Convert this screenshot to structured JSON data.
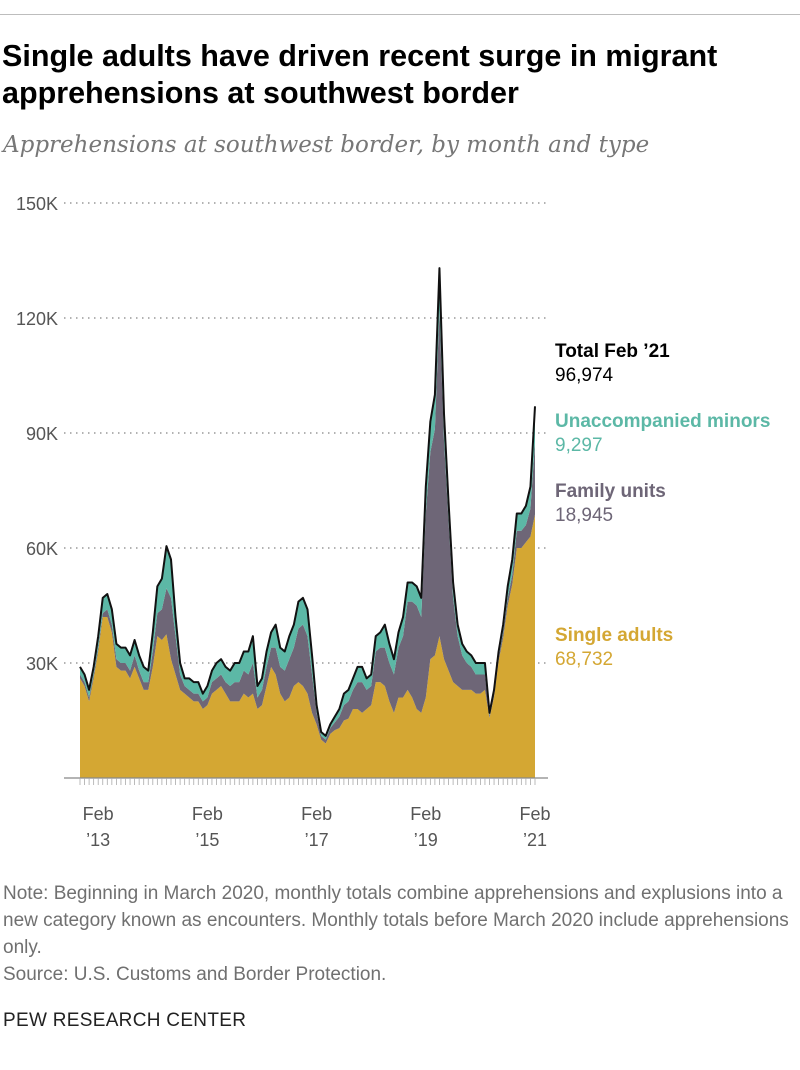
{
  "title": "Single adults have driven recent surge in migrant apprehensions at southwest border",
  "subtitle": "Apprehensions at southwest border, by month and type",
  "colors": {
    "single_adults": "#D4A733",
    "family_units": "#6E6677",
    "unaccompanied_minors": "#5CB8A6",
    "total": "#111111"
  },
  "labels": {
    "total": {
      "name": "Total Feb ’21",
      "value": "96,974"
    },
    "uac": {
      "name": "Unaccompanied minors",
      "value": "9,297"
    },
    "family": {
      "name": "Family units",
      "value": "18,945"
    },
    "single": {
      "name": "Single adults",
      "value": "68,732"
    }
  },
  "note": "Note: Beginning in March 2020, monthly totals combine apprehensions and explusions into a new category known as encounters. Monthly totals before March 2020 include apprehensions only.",
  "source": "Source: U.S. Customs and Border Protection.",
  "brand": "PEW RESEARCH CENTER",
  "chart_data": {
    "type": "area",
    "stacked": true,
    "title": "Apprehensions at southwest border, by month and type",
    "x_start": "Oct 2012",
    "x_end": "Feb 2021",
    "x_ticks": [
      {
        "index": 4,
        "line1": "Feb",
        "line2": "’13"
      },
      {
        "index": 28,
        "line1": "Feb",
        "line2": "’15"
      },
      {
        "index": 52,
        "line1": "Feb",
        "line2": "’17"
      },
      {
        "index": 76,
        "line1": "Feb",
        "line2": "’19"
      },
      {
        "index": 100,
        "line1": "Feb",
        "line2": "’21"
      }
    ],
    "y_ticks": [
      {
        "value": 30,
        "label": "30K"
      },
      {
        "value": 60,
        "label": "60K"
      },
      {
        "value": 90,
        "label": "90K"
      },
      {
        "value": 120,
        "label": "120K"
      },
      {
        "value": 150,
        "label": "150K"
      }
    ],
    "ylim": [
      0,
      150
    ],
    "units": "thousands",
    "total": [
      29,
      27,
      23,
      29,
      37,
      47,
      48,
      44,
      35,
      34,
      34,
      32,
      36,
      32,
      29,
      28,
      38,
      50,
      52,
      60.5,
      57,
      42,
      30,
      26,
      26,
      25,
      25,
      22,
      24,
      28,
      30,
      31,
      29,
      28,
      30,
      30,
      33,
      33,
      37,
      24,
      26,
      33,
      38,
      40,
      34,
      33,
      37,
      40,
      46,
      47,
      44,
      32,
      19,
      12,
      11,
      14,
      16,
      18,
      22,
      23,
      26,
      29,
      29,
      26,
      27,
      37,
      38,
      40,
      35,
      31,
      38,
      42,
      51,
      51,
      50,
      47,
      76,
      93,
      100,
      133,
      95,
      72,
      51,
      40,
      35,
      33,
      32,
      30,
      30,
      30,
      17,
      23,
      33,
      40,
      50,
      57,
      69,
      69,
      71,
      76,
      96.974
    ],
    "unaccompanied_minors": [
      2,
      2,
      2,
      2,
      3,
      4,
      4,
      4,
      4,
      4,
      4,
      4,
      4,
      4,
      4,
      3,
      5,
      7,
      8,
      11,
      10,
      5,
      3,
      2,
      3,
      3,
      3,
      2,
      3,
      3,
      4,
      4,
      4,
      4,
      5,
      5,
      5,
      6,
      7,
      3,
      3,
      4,
      4,
      6,
      5,
      5,
      6,
      6,
      7,
      7,
      7,
      5,
      2,
      1,
      1,
      1,
      1.5,
      2,
      3,
      3,
      3,
      4,
      4,
      3,
      3,
      4,
      4,
      6,
      5,
      4,
      4,
      5,
      5,
      5,
      5,
      5,
      7,
      8,
      9,
      11,
      7,
      5,
      4,
      3,
      3,
      3,
      3,
      3,
      3,
      3,
      0.7,
      1,
      1.5,
      2,
      3,
      4,
      4.5,
      4.5,
      5,
      5.7,
      9.297
    ],
    "family_units": [
      1,
      1,
      1,
      1,
      1,
      1,
      2,
      2,
      2,
      2,
      2,
      2,
      3,
      2,
      2,
      2,
      4,
      6,
      8,
      12,
      16,
      10,
      4,
      2,
      2,
      2,
      2,
      2,
      2,
      3,
      3,
      3,
      3,
      4,
      5,
      5,
      6,
      6,
      8,
      3,
      4,
      5,
      5,
      7,
      7,
      8,
      10,
      10,
      14,
      16,
      15,
      10,
      3,
      1,
      1,
      1.5,
      2,
      3,
      4,
      4.5,
      5,
      7,
      8,
      5,
      5,
      8,
      9,
      10,
      10,
      10,
      13,
      16,
      23,
      25,
      27,
      25,
      48,
      54,
      59,
      85,
      57,
      39,
      22,
      13,
      9,
      7,
      6,
      5,
      5,
      4,
      0.6,
      0.8,
      1,
      1.5,
      2,
      2.5,
      4.5,
      4.5,
      4.5,
      7.3,
      18.945
    ],
    "series_order": [
      "Single adults (total minus others)",
      "Family units",
      "Unaccompanied minors"
    ]
  }
}
